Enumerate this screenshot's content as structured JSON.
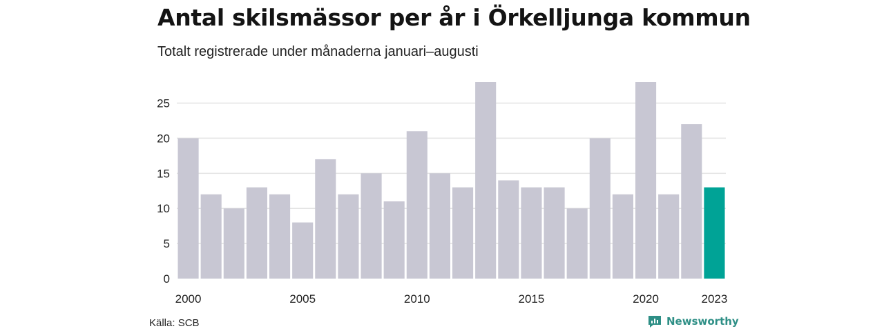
{
  "title": "Antal skilsmässor per år i Örkelljunga kommun",
  "subtitle": "Totalt registrerade under månaderna januari–augusti",
  "source": "Källa: SCB",
  "brand": "Newsworthy",
  "colors": {
    "bar": "#c8c7d3",
    "highlight": "#00a396",
    "grid": "#e3e3e3",
    "brand": "#2e8f86"
  },
  "chart_data": {
    "type": "bar",
    "categories": [
      "2000",
      "2001",
      "2002",
      "2003",
      "2004",
      "2005",
      "2006",
      "2007",
      "2008",
      "2009",
      "2010",
      "2011",
      "2012",
      "2013",
      "2014",
      "2015",
      "2016",
      "2017",
      "2018",
      "2019",
      "2020",
      "2021",
      "2022",
      "2023"
    ],
    "values": [
      20,
      12,
      10,
      13,
      12,
      8,
      17,
      12,
      15,
      11,
      21,
      15,
      13,
      28,
      14,
      13,
      13,
      10,
      20,
      12,
      28,
      12,
      22,
      13
    ],
    "highlight": "2023",
    "ylim": [
      0,
      28
    ],
    "yticks": [
      0,
      5,
      10,
      15,
      20,
      25
    ],
    "xtick_labels": [
      "2000",
      "2005",
      "2010",
      "2015",
      "2020",
      "2023"
    ],
    "grid": true
  }
}
